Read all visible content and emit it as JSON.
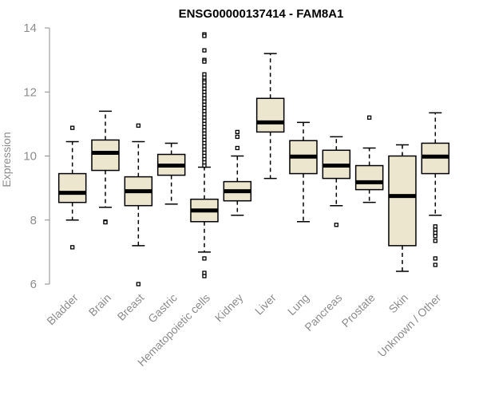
{
  "chart_data": {
    "type": "boxplot",
    "title": "ENSG00000137414 - FAM8A1",
    "xlabel": "",
    "ylabel": "Expression",
    "ylim": [
      6,
      14
    ],
    "yticks": [
      6,
      8,
      10,
      12,
      14
    ],
    "box_color": "#ede6cf",
    "categories": [
      "Bladder",
      "Brain",
      "Breast",
      "Gastric",
      "Hematopoietic cells",
      "Kidney",
      "Liver",
      "Lung",
      "Pancreas",
      "Prostate",
      "Skin",
      "Unknown / Other"
    ],
    "boxes": [
      {
        "name": "Bladder",
        "whisker_low": 8.0,
        "q1": 8.55,
        "median": 8.85,
        "q3": 9.45,
        "whisker_high": 10.45,
        "outliers": [
          10.88,
          7.15
        ]
      },
      {
        "name": "Brain",
        "whisker_low": 8.4,
        "q1": 9.55,
        "median": 10.1,
        "q3": 10.5,
        "whisker_high": 11.4,
        "outliers": [
          7.95,
          7.93
        ]
      },
      {
        "name": "Breast",
        "whisker_low": 7.2,
        "q1": 8.45,
        "median": 8.9,
        "q3": 9.35,
        "whisker_high": 10.45,
        "outliers": [
          10.95,
          6.0
        ]
      },
      {
        "name": "Gastric",
        "whisker_low": 8.5,
        "q1": 9.4,
        "median": 9.7,
        "q3": 10.05,
        "whisker_high": 10.4,
        "outliers": []
      },
      {
        "name": "Hematopoietic cells",
        "whisker_low": 7.0,
        "q1": 7.95,
        "median": 8.3,
        "q3": 8.65,
        "whisker_high": 9.65,
        "outliers": [
          13.8,
          13.75,
          13.3,
          13.0,
          12.95,
          12.55,
          12.45,
          12.35,
          12.3,
          12.2,
          12.1,
          12.0,
          11.9,
          11.8,
          11.7,
          11.6,
          11.5,
          11.4,
          11.3,
          11.2,
          11.1,
          11.0,
          10.9,
          10.8,
          10.7,
          10.6,
          10.5,
          10.4,
          10.3,
          10.2,
          10.1,
          10.0,
          9.9,
          9.8,
          9.7,
          6.8,
          6.35,
          6.25
        ]
      },
      {
        "name": "Kidney",
        "whisker_low": 8.15,
        "q1": 8.6,
        "median": 8.9,
        "q3": 9.2,
        "whisker_high": 10.0,
        "outliers": [
          10.75,
          10.6,
          10.25
        ]
      },
      {
        "name": "Liver",
        "whisker_low": 9.3,
        "q1": 10.75,
        "median": 11.05,
        "q3": 11.8,
        "whisker_high": 13.2,
        "outliers": []
      },
      {
        "name": "Lung",
        "whisker_low": 7.95,
        "q1": 9.45,
        "median": 9.98,
        "q3": 10.48,
        "whisker_high": 11.05,
        "outliers": []
      },
      {
        "name": "Pancreas",
        "whisker_low": 8.45,
        "q1": 9.3,
        "median": 9.7,
        "q3": 10.18,
        "whisker_high": 10.6,
        "outliers": [
          7.85
        ]
      },
      {
        "name": "Prostate",
        "whisker_low": 8.55,
        "q1": 8.95,
        "median": 9.18,
        "q3": 9.7,
        "whisker_high": 10.25,
        "outliers": [
          11.2
        ]
      },
      {
        "name": "Skin",
        "whisker_low": 6.4,
        "q1": 7.2,
        "median": 8.75,
        "q3": 10.0,
        "whisker_high": 10.35,
        "outliers": []
      },
      {
        "name": "Unknown / Other",
        "whisker_low": 8.15,
        "q1": 9.45,
        "median": 9.98,
        "q3": 10.4,
        "whisker_high": 11.35,
        "outliers": [
          7.8,
          7.7,
          7.6,
          7.5,
          7.35,
          6.8,
          6.6
        ]
      }
    ]
  }
}
